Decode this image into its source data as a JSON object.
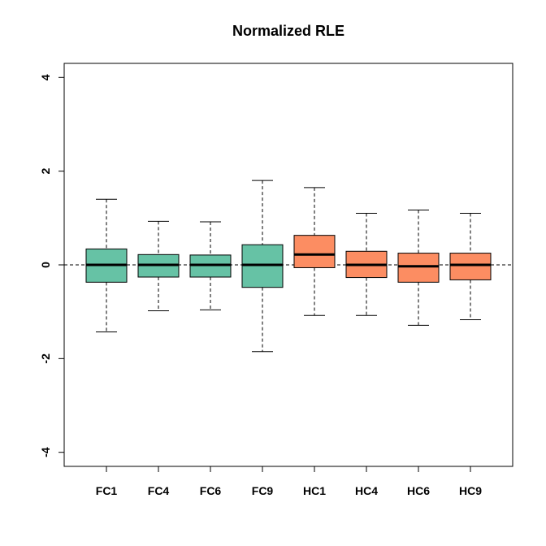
{
  "chart_data": {
    "type": "box",
    "title": "Normalized RLE",
    "xlabel": "",
    "ylabel": "",
    "ylim": [
      -4.3,
      4.3
    ],
    "yticks": [
      -4,
      -2,
      0,
      2,
      4
    ],
    "reference_line": 0,
    "grid": false,
    "categories": [
      "FC1",
      "FC4",
      "FC6",
      "FC9",
      "HC1",
      "HC4",
      "HC6",
      "HC9"
    ],
    "colors": [
      "#66C2A5",
      "#66C2A5",
      "#66C2A5",
      "#66C2A5",
      "#FC8D62",
      "#FC8D62",
      "#FC8D62",
      "#FC8D62"
    ],
    "boxes": [
      {
        "label": "FC1",
        "min": -1.43,
        "q1": -0.37,
        "median": 0.0,
        "q3": 0.34,
        "max": 1.4
      },
      {
        "label": "FC4",
        "min": -0.98,
        "q1": -0.26,
        "median": 0.0,
        "q3": 0.22,
        "max": 0.93
      },
      {
        "label": "FC6",
        "min": -0.96,
        "q1": -0.26,
        "median": 0.0,
        "q3": 0.21,
        "max": 0.92
      },
      {
        "label": "FC9",
        "min": -1.85,
        "q1": -0.48,
        "median": 0.0,
        "q3": 0.43,
        "max": 1.8
      },
      {
        "label": "HC1",
        "min": -1.08,
        "q1": -0.06,
        "median": 0.22,
        "q3": 0.63,
        "max": 1.65
      },
      {
        "label": "HC4",
        "min": -1.08,
        "q1": -0.27,
        "median": 0.0,
        "q3": 0.29,
        "max": 1.1
      },
      {
        "label": "HC6",
        "min": -1.29,
        "q1": -0.37,
        "median": -0.03,
        "q3": 0.25,
        "max": 1.17
      },
      {
        "label": "HC9",
        "min": -1.17,
        "q1": -0.32,
        "median": 0.0,
        "q3": 0.25,
        "max": 1.1
      }
    ]
  }
}
